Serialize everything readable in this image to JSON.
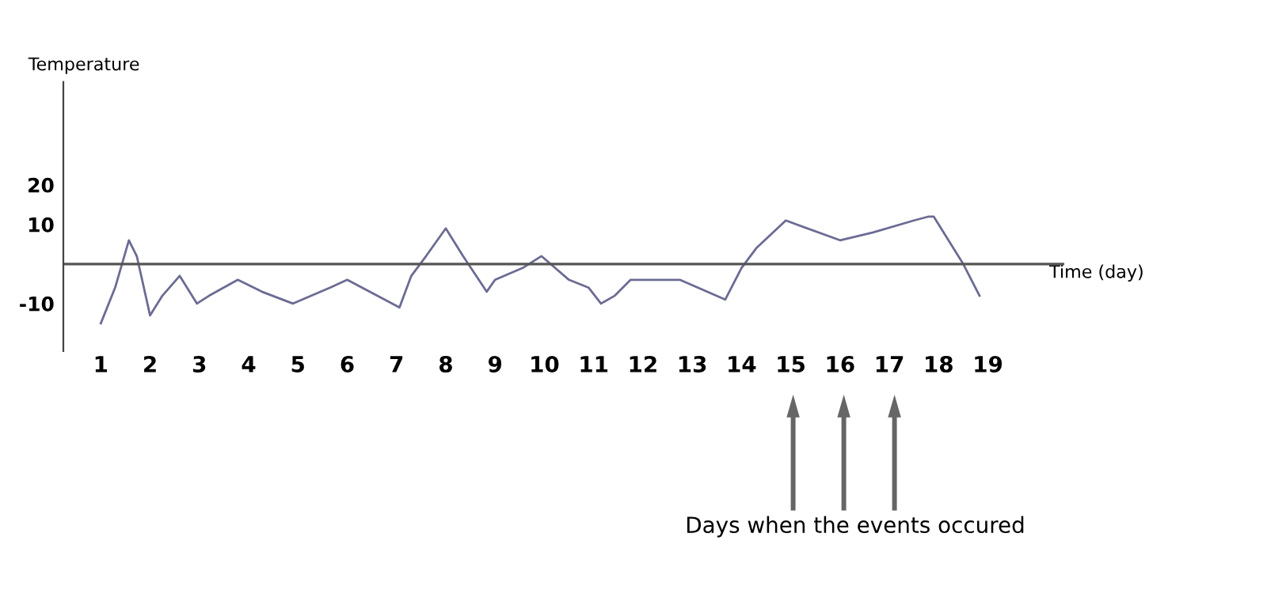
{
  "chart_data": {
    "type": "line",
    "xlabel": "Time (day)",
    "ylabel": "Temperature",
    "x": [
      1.0,
      1.29,
      1.57,
      1.73,
      2.0,
      2.25,
      2.6,
      2.95,
      3.2,
      3.78,
      4.27,
      4.9,
      5.65,
      6.0,
      7.06,
      7.3,
      7.6,
      8.0,
      8.35,
      8.83,
      9.0,
      9.56,
      9.94,
      10.5,
      10.9,
      11.15,
      11.43,
      11.75,
      12.75,
      13.67,
      14.0,
      14.3,
      14.9,
      16.0,
      16.67,
      17.5,
      17.8,
      17.9,
      18.5,
      18.83
    ],
    "series": [
      {
        "color": "#6b6b94",
        "values": [
          -15,
          -6,
          6,
          2,
          -13,
          -8,
          -3,
          -10,
          -8,
          -4,
          -7,
          -10,
          -6,
          -4,
          -11,
          -3,
          2,
          9,
          2,
          -7,
          -4,
          -1,
          2,
          -4,
          -6,
          -10,
          -8,
          -4,
          -4,
          -9,
          -1,
          4,
          11,
          6,
          8,
          11,
          12,
          12,
          0,
          -8
        ]
      }
    ],
    "xlim": [
      0.24,
      20.55
    ],
    "ylim": [
      -22,
      46
    ],
    "xticks": [
      1,
      2,
      3,
      4,
      5,
      6,
      7,
      8,
      9,
      10,
      11,
      12,
      13,
      14,
      15,
      16,
      17,
      18,
      19
    ],
    "yticks": [
      -10,
      10,
      20
    ],
    "ref_lines": [
      {
        "axis": "y",
        "value": 0,
        "color": "#555555"
      }
    ],
    "annotations": [
      "Days when the events occured"
    ],
    "grid": false,
    "legend": false,
    "marker": "none",
    "line_style": "solid"
  }
}
